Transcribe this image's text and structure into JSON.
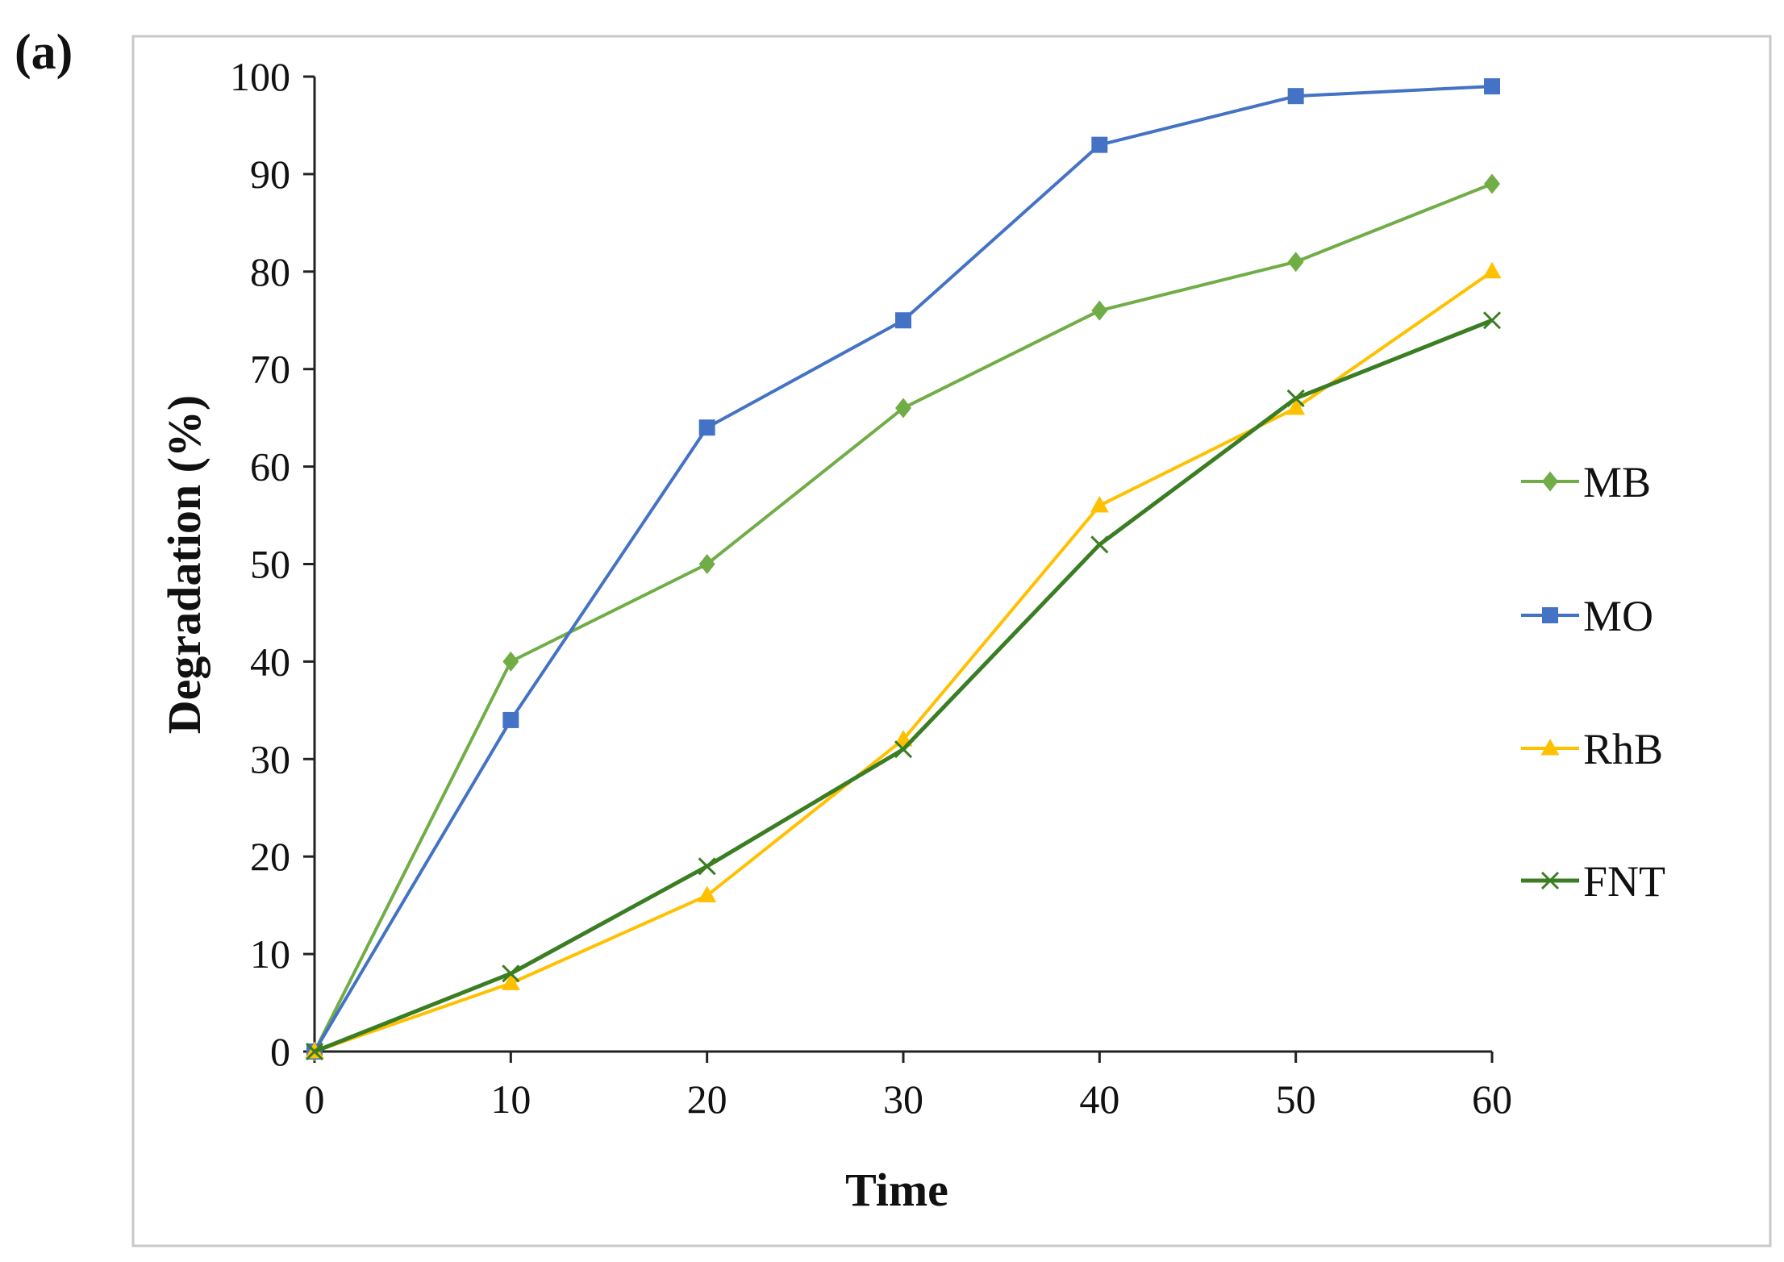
{
  "panel_label": "(a)",
  "chart_data": {
    "type": "line",
    "title": "",
    "xlabel": "Time",
    "ylabel": "Degradation (%)",
    "x": [
      0,
      10,
      20,
      30,
      40,
      50,
      60
    ],
    "x_ticks": [
      "0",
      "10",
      "20",
      "30",
      "40",
      "50",
      "60"
    ],
    "y_ticks": [
      "0",
      "10",
      "20",
      "30",
      "40",
      "50",
      "60",
      "70",
      "80",
      "90",
      "100"
    ],
    "xlim": [
      0,
      60
    ],
    "ylim": [
      0,
      100
    ],
    "grid": false,
    "legend_position": "right",
    "series": [
      {
        "name": "MB",
        "color": "#70ad47",
        "marker": "diamond",
        "values": [
          0,
          40,
          50,
          66,
          76,
          81,
          89
        ]
      },
      {
        "name": "MO",
        "color": "#4472c4",
        "marker": "square",
        "values": [
          0,
          34,
          64,
          75,
          93,
          98,
          99
        ]
      },
      {
        "name": "RhB",
        "color": "#ffc000",
        "marker": "triangle",
        "values": [
          0,
          7,
          16,
          32,
          56,
          66,
          80
        ]
      },
      {
        "name": "FNT",
        "color": "#3a7d22",
        "marker": "x",
        "values": [
          0,
          8,
          19,
          31,
          52,
          67,
          75
        ]
      }
    ]
  }
}
